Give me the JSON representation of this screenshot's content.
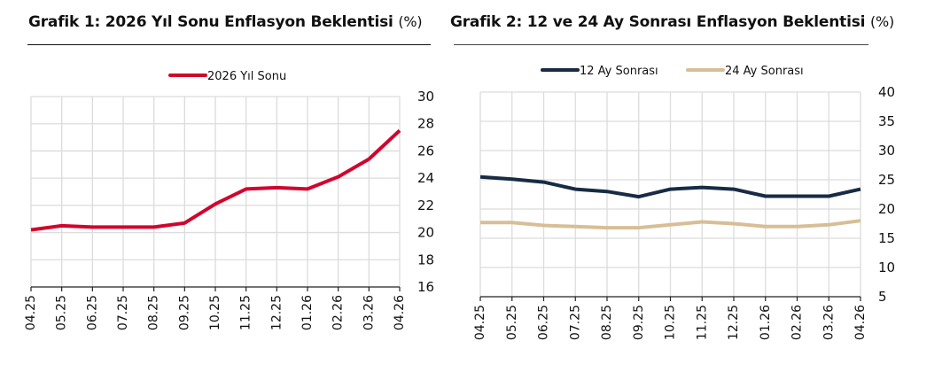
{
  "chart_data": [
    {
      "type": "line",
      "title": "Grafik 1: 2026 Yıl Sonu Enflasyon Beklentisi",
      "title_unit": "(%)",
      "xlabel": "",
      "ylabel": "",
      "categories": [
        "04.25",
        "05.25",
        "06.25",
        "07.25",
        "08.25",
        "09.25",
        "10.25",
        "11.25",
        "12.25",
        "01.26",
        "02.26",
        "03.26",
        "04.26"
      ],
      "series": [
        {
          "name": "2026 Yıl Sonu",
          "color": "#d2042d",
          "values": [
            20.2,
            20.5,
            20.4,
            20.4,
            20.4,
            20.7,
            22.1,
            23.2,
            23.3,
            23.2,
            24.1,
            25.4,
            27.5
          ]
        }
      ],
      "ylim": [
        16,
        30
      ],
      "yticks": [
        16,
        18,
        20,
        22,
        24,
        26,
        28,
        30
      ],
      "y_axis_position": "right",
      "grid": true,
      "legend_position": "top"
    },
    {
      "type": "line",
      "title": "Grafik 2: 12 ve 24 Ay Sonrası Enflasyon Beklentisi",
      "title_unit": "(%)",
      "xlabel": "",
      "ylabel": "",
      "categories": [
        "04.25",
        "05.25",
        "06.25",
        "07.25",
        "08.25",
        "09.25",
        "10.25",
        "11.25",
        "12.25",
        "01.26",
        "02.26",
        "03.26",
        "04.26"
      ],
      "series": [
        {
          "name": "12 Ay Sonrası",
          "color": "#172b44",
          "values": [
            25.5,
            25.1,
            24.6,
            23.4,
            23.0,
            22.1,
            23.4,
            23.7,
            23.4,
            22.2,
            22.2,
            22.2,
            23.4
          ]
        },
        {
          "name": "24 Ay Sonrası",
          "color": "#d7be96",
          "values": [
            17.7,
            17.7,
            17.2,
            17.0,
            16.8,
            16.8,
            17.3,
            17.8,
            17.5,
            17.0,
            17.0,
            17.3,
            18.0
          ]
        }
      ],
      "ylim": [
        5,
        40
      ],
      "yticks": [
        5,
        10,
        15,
        20,
        25,
        30,
        35,
        40
      ],
      "y_axis_position": "right",
      "grid": true,
      "legend_position": "top"
    }
  ]
}
